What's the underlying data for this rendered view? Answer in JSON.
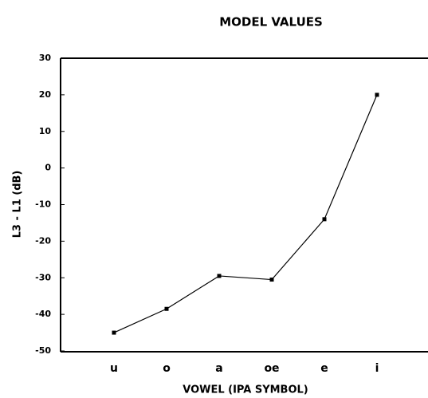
{
  "chart_data": {
    "type": "line",
    "title": "MODEL VALUES",
    "x_label": "VOWEL (IPA SYMBOL)",
    "y_label": "L3 - L1 (dB)",
    "categories": [
      "u",
      "o",
      "a",
      "oe",
      "e",
      "i"
    ],
    "values": [
      -45,
      -38.5,
      -29.5,
      -30.5,
      -14,
      20
    ],
    "color": "#000000",
    "ylim": [
      -50,
      30
    ],
    "yticks": [
      -50,
      -40,
      -30,
      -20,
      -10,
      0,
      10,
      20,
      30
    ],
    "grid": false
  }
}
